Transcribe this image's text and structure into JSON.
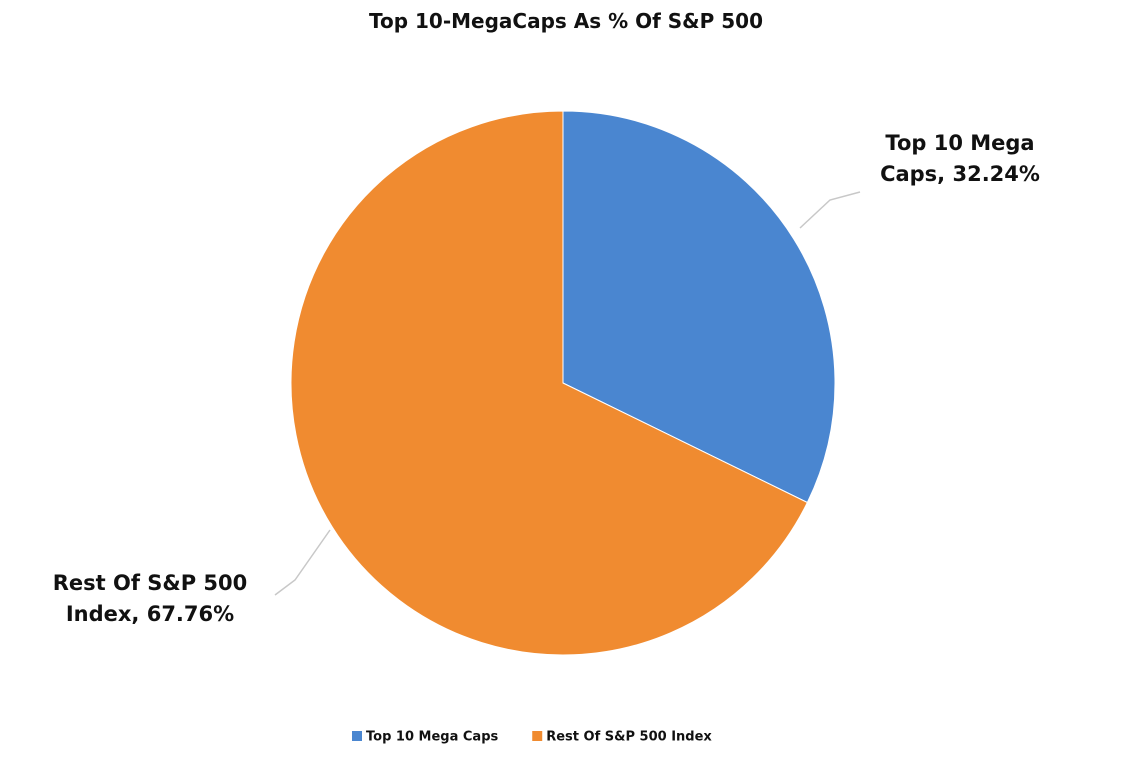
{
  "chart_data": {
    "type": "pie",
    "title": "Top 10-MegaCaps As % Of S&P 500",
    "categories": [
      "Top 10 Mega Caps",
      "Rest Of S&P 500 Index"
    ],
    "values": [
      32.24,
      67.76
    ],
    "value_labels": [
      "Top 10 Mega Caps, 32.24%",
      "Rest Of S&P 500 Index, 67.76%"
    ],
    "colors": [
      "#4a86d0",
      "#f08b30"
    ],
    "legend": "bottom"
  }
}
